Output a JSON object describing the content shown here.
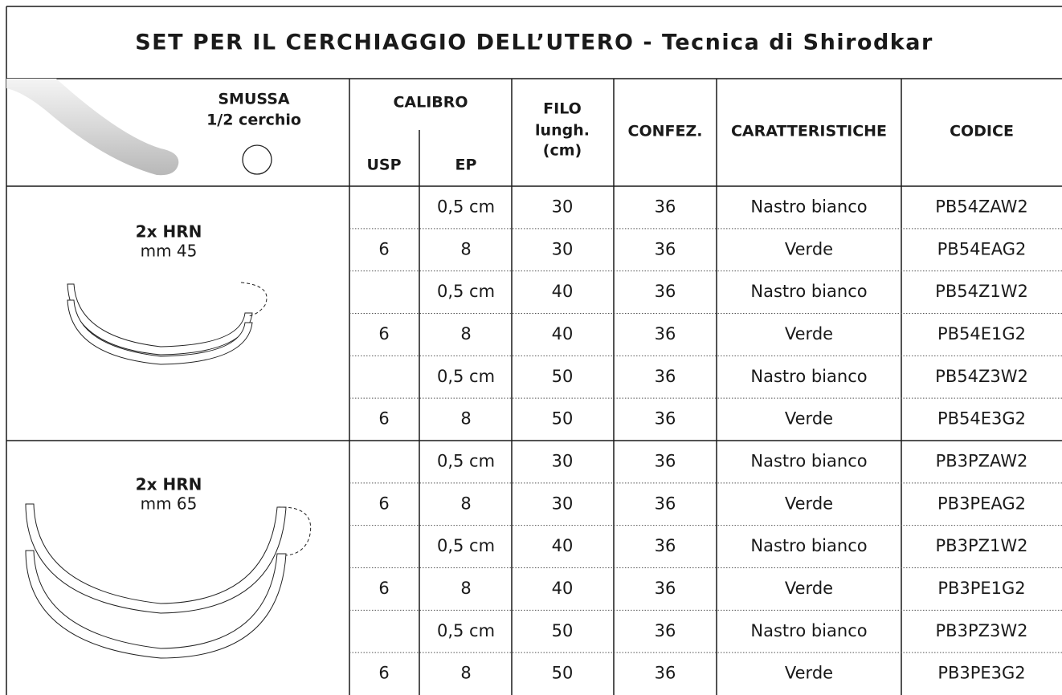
{
  "title": "SET PER IL CERCHIAGGIO DELL’UTERO - Tecnica di Shirodkar",
  "header": {
    "needle_type": "SMUSSA",
    "needle_curve": "1/2 cerchio",
    "calibro": "CALIBRO",
    "usp": "USP",
    "ep": "EP",
    "filo": [
      "FILO",
      "lungh.",
      "(cm)"
    ],
    "confez": "CONFEZ.",
    "caratteristiche": "CARATTERISTICHE",
    "codice": "CODICE"
  },
  "groups": [
    {
      "label": "2x HRN",
      "size": "mm 45",
      "rows": [
        [
          null,
          "0,5 cm",
          30,
          36,
          "Nastro bianco",
          "PB54ZAW2"
        ],
        [
          6,
          8,
          30,
          36,
          "Verde",
          "PB54EAG2"
        ],
        [
          null,
          "0,5 cm",
          40,
          36,
          "Nastro bianco",
          "PB54Z1W2"
        ],
        [
          6,
          8,
          40,
          36,
          "Verde",
          "PB54E1G2"
        ],
        [
          null,
          "0,5 cm",
          50,
          36,
          "Nastro bianco",
          "PB54Z3W2"
        ],
        [
          6,
          8,
          50,
          36,
          "Verde",
          "PB54E3G2"
        ]
      ]
    },
    {
      "label": "2x HRN",
      "size": "mm 65",
      "rows": [
        [
          null,
          "0,5 cm",
          30,
          36,
          "Nastro bianco",
          "PB3PZAW2"
        ],
        [
          6,
          8,
          30,
          36,
          "Verde",
          "PB3PEAG2"
        ],
        [
          null,
          "0,5 cm",
          40,
          36,
          "Nastro bianco",
          "PB3PZ1W2"
        ],
        [
          6,
          8,
          40,
          36,
          "Verde",
          "PB3PE1G2"
        ],
        [
          null,
          "0,5 cm",
          50,
          36,
          "Nastro bianco",
          "PB3PZ3W2"
        ],
        [
          6,
          8,
          50,
          36,
          "Verde",
          "PB3PE3G2"
        ]
      ]
    }
  ]
}
